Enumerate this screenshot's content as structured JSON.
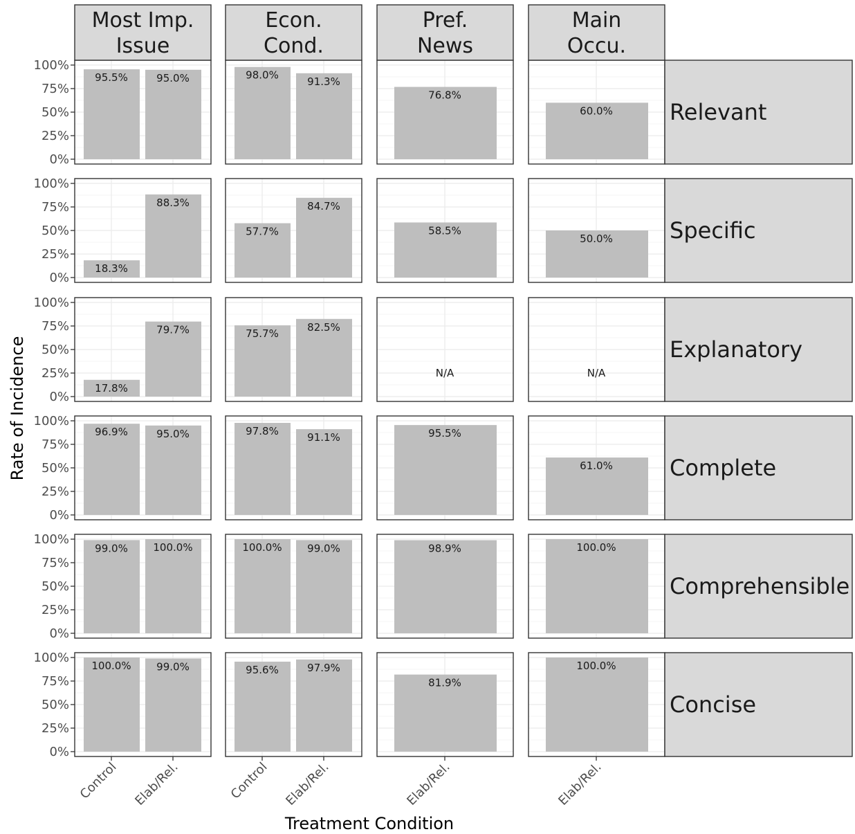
{
  "chart_data": {
    "type": "bar",
    "xlabel": "Treatment Condition",
    "ylabel": "Rate of Incidence",
    "ylim": [
      0,
      100
    ],
    "y_ticks": [
      "0%",
      "25%",
      "50%",
      "75%",
      "100%"
    ],
    "y_tick_values": [
      0,
      25,
      50,
      75,
      100
    ],
    "grid": true,
    "bar_color": "#bebebe",
    "strip_color": "#d9d9d9",
    "columns": [
      {
        "label": "Most Imp.\nIssue",
        "categories": [
          "Control",
          "Elab/Rel."
        ]
      },
      {
        "label": "Econ.\nCond.",
        "categories": [
          "Control",
          "Elab/Rel."
        ]
      },
      {
        "label": "Pref.\nNews",
        "categories": [
          "Elab/Rel."
        ]
      },
      {
        "label": "Main\nOccu.",
        "categories": [
          "Elab/Rel."
        ]
      }
    ],
    "rows": [
      "Relevant",
      "Specific",
      "Explanatory",
      "Complete",
      "Comprehensible",
      "Concise"
    ],
    "panels": [
      [
        {
          "values": [
            95.5,
            95.0
          ],
          "labels": [
            "95.5%",
            "95.0%"
          ]
        },
        {
          "values": [
            98.0,
            91.3
          ],
          "labels": [
            "98.0%",
            "91.3%"
          ]
        },
        {
          "values": [
            76.8
          ],
          "labels": [
            "76.8%"
          ]
        },
        {
          "values": [
            60.0
          ],
          "labels": [
            "60.0%"
          ]
        }
      ],
      [
        {
          "values": [
            18.3,
            88.3
          ],
          "labels": [
            "18.3%",
            "88.3%"
          ]
        },
        {
          "values": [
            57.7,
            84.7
          ],
          "labels": [
            "57.7%",
            "84.7%"
          ]
        },
        {
          "values": [
            58.5
          ],
          "labels": [
            "58.5%"
          ]
        },
        {
          "values": [
            50.0
          ],
          "labels": [
            "50.0%"
          ]
        }
      ],
      [
        {
          "values": [
            17.8,
            79.7
          ],
          "labels": [
            "17.8%",
            "79.7%"
          ]
        },
        {
          "values": [
            75.7,
            82.5
          ],
          "labels": [
            "75.7%",
            "82.5%"
          ]
        },
        {
          "values": [
            null
          ],
          "labels": [
            "N/A"
          ]
        },
        {
          "values": [
            null
          ],
          "labels": [
            "N/A"
          ]
        }
      ],
      [
        {
          "values": [
            96.9,
            95.0
          ],
          "labels": [
            "96.9%",
            "95.0%"
          ]
        },
        {
          "values": [
            97.8,
            91.1
          ],
          "labels": [
            "97.8%",
            "91.1%"
          ]
        },
        {
          "values": [
            95.5
          ],
          "labels": [
            "95.5%"
          ]
        },
        {
          "values": [
            61.0
          ],
          "labels": [
            "61.0%"
          ]
        }
      ],
      [
        {
          "values": [
            99.0,
            100.0
          ],
          "labels": [
            "99.0%",
            "100.0%"
          ]
        },
        {
          "values": [
            100.0,
            99.0
          ],
          "labels": [
            "100.0%",
            "99.0%"
          ]
        },
        {
          "values": [
            98.9
          ],
          "labels": [
            "98.9%"
          ]
        },
        {
          "values": [
            100.0
          ],
          "labels": [
            "100.0%"
          ]
        }
      ],
      [
        {
          "values": [
            100.0,
            99.0
          ],
          "labels": [
            "100.0%",
            "99.0%"
          ]
        },
        {
          "values": [
            95.6,
            97.9
          ],
          "labels": [
            "95.6%",
            "97.9%"
          ]
        },
        {
          "values": [
            81.9
          ],
          "labels": [
            "81.9%"
          ]
        },
        {
          "values": [
            100.0
          ],
          "labels": [
            "100.0%"
          ]
        }
      ]
    ]
  }
}
